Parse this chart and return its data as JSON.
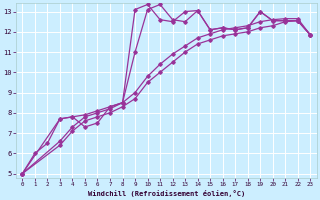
{
  "xlabel": "Windchill (Refroidissement éolien,°C)",
  "line_color": "#993399",
  "bg_color": "#cceeff",
  "grid_color": "#ffffff",
  "xlim": [
    -0.5,
    23.5
  ],
  "ylim": [
    4.8,
    13.4
  ],
  "xticks": [
    0,
    1,
    2,
    3,
    4,
    5,
    6,
    7,
    8,
    9,
    10,
    11,
    12,
    13,
    14,
    15,
    16,
    17,
    18,
    19,
    20,
    21,
    22,
    23
  ],
  "yticks": [
    5,
    6,
    7,
    8,
    9,
    10,
    11,
    12,
    13
  ],
  "line1_x": [
    0,
    1,
    2,
    3,
    4,
    5,
    6,
    7,
    8,
    9,
    10,
    11,
    12,
    13,
    14,
    15,
    16,
    17,
    18,
    19,
    20,
    21,
    22,
    23
  ],
  "line1_y": [
    5.0,
    6.0,
    6.5,
    7.7,
    7.8,
    7.3,
    7.5,
    8.3,
    8.5,
    13.1,
    13.35,
    12.6,
    12.5,
    13.0,
    13.05,
    12.1,
    12.2,
    12.1,
    12.2,
    13.0,
    12.55,
    12.55,
    12.55,
    11.85
  ],
  "line2_x": [
    0,
    3,
    4,
    5,
    6,
    7,
    8,
    9,
    10,
    11,
    12,
    13,
    14,
    15,
    16,
    17,
    18,
    19,
    20,
    21,
    22,
    23
  ],
  "line2_y": [
    5.0,
    7.7,
    7.8,
    7.9,
    8.1,
    8.3,
    8.5,
    11.0,
    13.1,
    13.35,
    12.6,
    12.5,
    13.05,
    12.1,
    12.2,
    12.1,
    12.2,
    13.0,
    12.55,
    12.55,
    12.55,
    11.85
  ],
  "line3_x": [
    0,
    3,
    4,
    5,
    6,
    7,
    8,
    9,
    10,
    11,
    12,
    13,
    14,
    15,
    16,
    17,
    18,
    19,
    20,
    21,
    22,
    23
  ],
  "line3_y": [
    5.0,
    6.4,
    7.1,
    7.6,
    7.8,
    8.0,
    8.3,
    8.7,
    9.5,
    10.0,
    10.5,
    11.0,
    11.4,
    11.6,
    11.8,
    11.9,
    12.0,
    12.2,
    12.3,
    12.5,
    12.55,
    11.85
  ],
  "line4_x": [
    0,
    3,
    4,
    5,
    6,
    7,
    8,
    9,
    10,
    11,
    12,
    13,
    14,
    15,
    16,
    17,
    18,
    19,
    20,
    21,
    22,
    23
  ],
  "line4_y": [
    5.0,
    6.6,
    7.3,
    7.8,
    8.0,
    8.2,
    8.5,
    9.0,
    9.8,
    10.4,
    10.9,
    11.3,
    11.7,
    11.9,
    12.1,
    12.2,
    12.3,
    12.5,
    12.6,
    12.65,
    12.65,
    11.85
  ]
}
